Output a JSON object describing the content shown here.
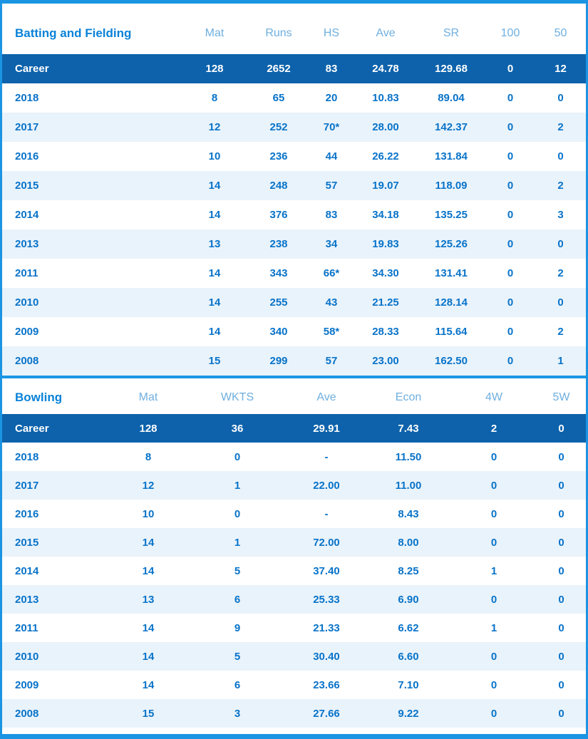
{
  "colors": {
    "border": "#1b95e3",
    "career_row_bg": "#0d62ab",
    "section_title": "#0982d8",
    "column_header": "#6fafdf",
    "data_text": "#0873c9",
    "alt_row_bg": "#e9f3fb"
  },
  "batting": {
    "title": "Batting and Fielding",
    "columns": [
      "Mat",
      "Runs",
      "HS",
      "Ave",
      "SR",
      "100",
      "50"
    ],
    "career": {
      "label": "Career",
      "values": [
        "128",
        "2652",
        "83",
        "24.78",
        "129.68",
        "0",
        "12"
      ]
    },
    "rows": [
      {
        "label": "2018",
        "values": [
          "8",
          "65",
          "20",
          "10.83",
          "89.04",
          "0",
          "0"
        ]
      },
      {
        "label": "2017",
        "values": [
          "12",
          "252",
          "70*",
          "28.00",
          "142.37",
          "0",
          "2"
        ]
      },
      {
        "label": "2016",
        "values": [
          "10",
          "236",
          "44",
          "26.22",
          "131.84",
          "0",
          "0"
        ]
      },
      {
        "label": "2015",
        "values": [
          "14",
          "248",
          "57",
          "19.07",
          "118.09",
          "0",
          "2"
        ]
      },
      {
        "label": "2014",
        "values": [
          "14",
          "376",
          "83",
          "34.18",
          "135.25",
          "0",
          "3"
        ]
      },
      {
        "label": "2013",
        "values": [
          "13",
          "238",
          "34",
          "19.83",
          "125.26",
          "0",
          "0"
        ]
      },
      {
        "label": "2011",
        "values": [
          "14",
          "343",
          "66*",
          "34.30",
          "131.41",
          "0",
          "2"
        ]
      },
      {
        "label": "2010",
        "values": [
          "14",
          "255",
          "43",
          "21.25",
          "128.14",
          "0",
          "0"
        ]
      },
      {
        "label": "2009",
        "values": [
          "14",
          "340",
          "58*",
          "28.33",
          "115.64",
          "0",
          "2"
        ]
      },
      {
        "label": "2008",
        "values": [
          "15",
          "299",
          "57",
          "23.00",
          "162.50",
          "0",
          "1"
        ]
      }
    ]
  },
  "bowling": {
    "title": "Bowling",
    "columns": [
      "Mat",
      "WKTS",
      "Ave",
      "Econ",
      "4W",
      "5W"
    ],
    "career": {
      "label": "Career",
      "values": [
        "128",
        "36",
        "29.91",
        "7.43",
        "2",
        "0"
      ]
    },
    "rows": [
      {
        "label": "2018",
        "values": [
          "8",
          "0",
          "-",
          "11.50",
          "0",
          "0"
        ]
      },
      {
        "label": "2017",
        "values": [
          "12",
          "1",
          "22.00",
          "11.00",
          "0",
          "0"
        ]
      },
      {
        "label": "2016",
        "values": [
          "10",
          "0",
          "-",
          "8.43",
          "0",
          "0"
        ]
      },
      {
        "label": "2015",
        "values": [
          "14",
          "1",
          "72.00",
          "8.00",
          "0",
          "0"
        ]
      },
      {
        "label": "2014",
        "values": [
          "14",
          "5",
          "37.40",
          "8.25",
          "1",
          "0"
        ]
      },
      {
        "label": "2013",
        "values": [
          "13",
          "6",
          "25.33",
          "6.90",
          "0",
          "0"
        ]
      },
      {
        "label": "2011",
        "values": [
          "14",
          "9",
          "21.33",
          "6.62",
          "1",
          "0"
        ]
      },
      {
        "label": "2010",
        "values": [
          "14",
          "5",
          "30.40",
          "6.60",
          "0",
          "0"
        ]
      },
      {
        "label": "2009",
        "values": [
          "14",
          "6",
          "23.66",
          "7.10",
          "0",
          "0"
        ]
      },
      {
        "label": "2008",
        "values": [
          "15",
          "3",
          "27.66",
          "9.22",
          "0",
          "0"
        ]
      }
    ]
  }
}
